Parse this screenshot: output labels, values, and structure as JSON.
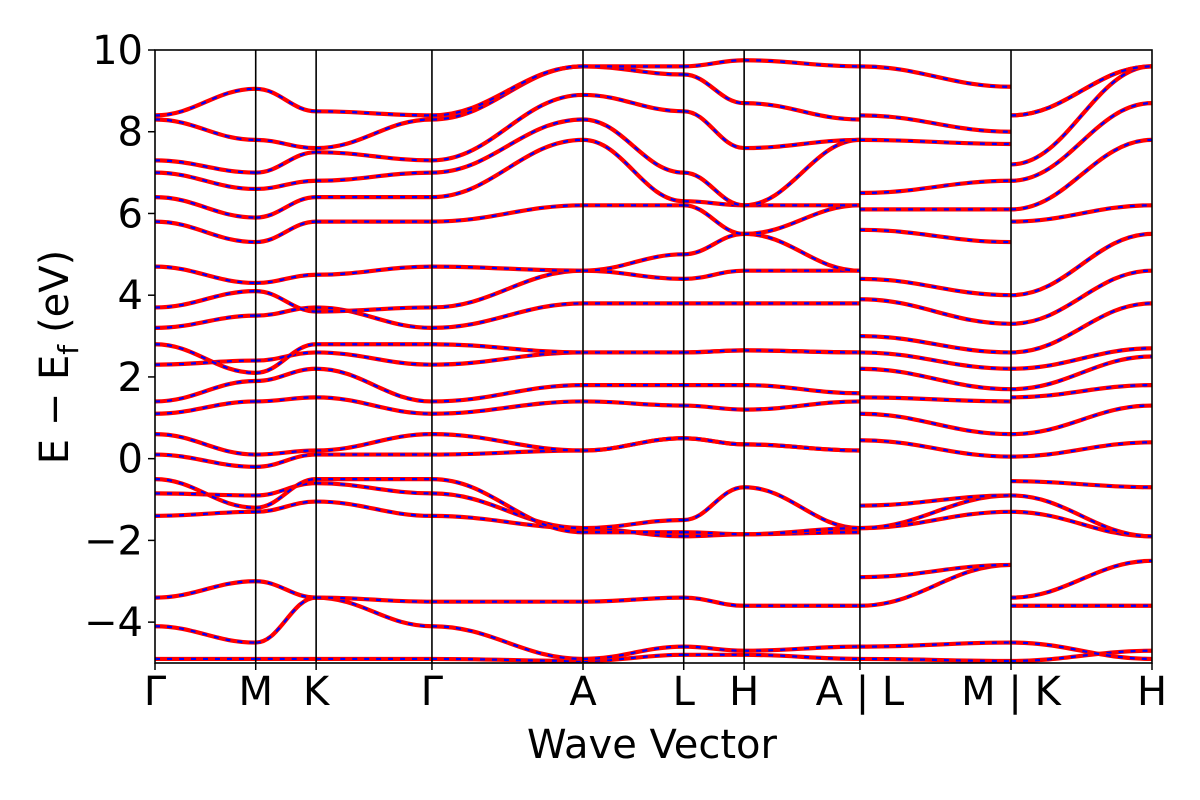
{
  "chart_data": {
    "type": "line",
    "title": "",
    "xlabel": "Wave Vector",
    "ylabel": "E − E_f (eV)",
    "ylabel_main": "E − E",
    "ylabel_sub": "f",
    "ylabel_unit": "(eV)",
    "ylim": [
      -5,
      10
    ],
    "yticks": [
      -4,
      -2,
      0,
      2,
      4,
      6,
      8,
      10
    ],
    "ytick_labels": [
      "−4",
      "−2",
      "0",
      "2",
      "4",
      "6",
      "8",
      "10"
    ],
    "xlim": [
      0,
      9.9
    ],
    "grid": false,
    "legend": "none",
    "series_colors": {
      "primary": "#ff0000",
      "overlay": "#0000ff"
    },
    "kpoint_lines": [
      1.0,
      1.6,
      2.75,
      4.25,
      5.25,
      5.85,
      7.0,
      8.5
    ],
    "kpoints": [
      {
        "label": "Γ",
        "x": 0.0
      },
      {
        "label": "M",
        "x": 1.0
      },
      {
        "label": "K",
        "x": 1.6
      },
      {
        "label": "Γ",
        "x": 2.75
      },
      {
        "label": "A",
        "x": 4.25
      },
      {
        "label": "L",
        "x": 5.25
      },
      {
        "label": "H",
        "x": 5.85
      },
      {
        "label": "A | L",
        "x": 7.0
      },
      {
        "label": "M | K",
        "x": 8.5
      },
      {
        "label": "H",
        "x": 9.9
      }
    ],
    "segments": [
      {
        "x": [
          0,
          1.0
        ],
        "bands": [
          [
            -4.9,
            -4.9
          ],
          [
            -4.1,
            -4.5
          ],
          [
            -3.4,
            -3.0
          ],
          [
            -1.4,
            -1.3
          ],
          [
            -0.85,
            -0.9
          ],
          [
            -0.5,
            -1.2
          ],
          [
            0.1,
            -0.2
          ],
          [
            0.6,
            0.1
          ],
          [
            1.1,
            1.4
          ],
          [
            1.4,
            1.9
          ],
          [
            2.3,
            2.4
          ],
          [
            2.8,
            2.1
          ],
          [
            3.2,
            3.5
          ],
          [
            3.7,
            4.1
          ],
          [
            4.7,
            4.3
          ],
          [
            5.8,
            5.3
          ],
          [
            6.4,
            5.9
          ],
          [
            7.0,
            6.6
          ],
          [
            7.3,
            7.0
          ],
          [
            8.3,
            7.8
          ],
          [
            8.4,
            9.05
          ]
        ]
      },
      {
        "x": [
          1.0,
          1.6
        ],
        "bands": [
          [
            -4.9,
            -4.9
          ],
          [
            -4.5,
            -3.4
          ],
          [
            -3.0,
            -3.4
          ],
          [
            -1.3,
            -1.05
          ],
          [
            -0.9,
            -0.6
          ],
          [
            -1.2,
            -0.5
          ],
          [
            -0.2,
            0.1
          ],
          [
            0.1,
            0.2
          ],
          [
            1.4,
            1.5
          ],
          [
            1.9,
            2.2
          ],
          [
            2.4,
            2.6
          ],
          [
            2.1,
            2.8
          ],
          [
            3.5,
            3.7
          ],
          [
            4.1,
            3.6
          ],
          [
            4.3,
            4.5
          ],
          [
            5.3,
            5.8
          ],
          [
            5.9,
            6.4
          ],
          [
            6.6,
            6.8
          ],
          [
            7.0,
            7.5
          ],
          [
            7.8,
            7.6
          ],
          [
            9.05,
            8.5
          ]
        ]
      },
      {
        "x": [
          1.6,
          2.75
        ],
        "bands": [
          [
            -4.9,
            -4.9
          ],
          [
            -3.4,
            -4.1
          ],
          [
            -3.4,
            -3.5
          ],
          [
            -1.05,
            -1.4
          ],
          [
            -0.6,
            -0.85
          ],
          [
            -0.5,
            -0.5
          ],
          [
            0.1,
            0.1
          ],
          [
            0.2,
            0.6
          ],
          [
            1.5,
            1.1
          ],
          [
            2.2,
            1.4
          ],
          [
            2.6,
            2.3
          ],
          [
            2.8,
            2.8
          ],
          [
            3.7,
            3.2
          ],
          [
            3.6,
            3.7
          ],
          [
            4.5,
            4.7
          ],
          [
            5.8,
            5.8
          ],
          [
            6.4,
            6.4
          ],
          [
            6.8,
            7.0
          ],
          [
            7.5,
            7.3
          ],
          [
            7.6,
            8.3
          ],
          [
            8.5,
            8.4
          ]
        ]
      },
      {
        "x": [
          2.75,
          4.25
        ],
        "bands": [
          [
            -4.9,
            -4.95
          ],
          [
            -4.1,
            -4.9
          ],
          [
            -3.5,
            -3.5
          ],
          [
            -1.4,
            -1.7
          ],
          [
            -0.85,
            -1.7
          ],
          [
            -0.5,
            -1.8
          ],
          [
            0.1,
            0.2
          ],
          [
            0.6,
            0.2
          ],
          [
            1.1,
            1.4
          ],
          [
            1.4,
            1.8
          ],
          [
            2.3,
            2.6
          ],
          [
            2.8,
            2.6
          ],
          [
            3.2,
            3.8
          ],
          [
            3.7,
            4.6
          ],
          [
            4.7,
            4.6
          ],
          [
            5.8,
            6.2
          ],
          [
            6.4,
            7.8
          ],
          [
            7.0,
            8.3
          ],
          [
            7.3,
            8.9
          ],
          [
            8.3,
            9.6
          ],
          [
            8.4,
            9.6
          ]
        ]
      },
      {
        "x": [
          4.25,
          5.25
        ],
        "bands": [
          [
            -4.95,
            -4.8
          ],
          [
            -4.9,
            -4.6
          ],
          [
            -3.5,
            -3.4
          ],
          [
            -1.7,
            -1.9
          ],
          [
            -1.7,
            -1.5
          ],
          [
            -1.8,
            -1.8
          ],
          [
            0.2,
            0.5
          ],
          [
            0.2,
            0.5
          ],
          [
            1.4,
            1.3
          ],
          [
            1.8,
            1.8
          ],
          [
            2.6,
            2.6
          ],
          [
            2.6,
            2.6
          ],
          [
            3.8,
            3.8
          ],
          [
            4.6,
            4.4
          ],
          [
            4.6,
            5.0
          ],
          [
            6.2,
            6.2
          ],
          [
            7.8,
            6.3
          ],
          [
            8.3,
            7.0
          ],
          [
            8.9,
            8.5
          ],
          [
            9.6,
            9.4
          ],
          [
            9.6,
            9.6
          ]
        ]
      },
      {
        "x": [
          5.25,
          5.85
        ],
        "bands": [
          [
            -4.8,
            -4.8
          ],
          [
            -4.6,
            -4.7
          ],
          [
            -3.4,
            -3.6
          ],
          [
            -1.9,
            -1.85
          ],
          [
            -1.5,
            -0.7
          ],
          [
            -1.8,
            -1.85
          ],
          [
            0.5,
            0.35
          ],
          [
            0.5,
            0.35
          ],
          [
            1.3,
            1.2
          ],
          [
            1.8,
            1.8
          ],
          [
            2.6,
            2.65
          ],
          [
            2.6,
            2.65
          ],
          [
            3.8,
            3.8
          ],
          [
            4.4,
            4.6
          ],
          [
            5.0,
            5.5
          ],
          [
            6.2,
            5.5
          ],
          [
            6.3,
            6.2
          ],
          [
            7.0,
            6.2
          ],
          [
            8.5,
            7.6
          ],
          [
            9.4,
            8.7
          ],
          [
            9.6,
            9.75
          ]
        ]
      },
      {
        "x": [
          5.85,
          7.0
        ],
        "bands": [
          [
            -4.8,
            -4.9
          ],
          [
            -4.7,
            -4.6
          ],
          [
            -3.6,
            -3.6
          ],
          [
            -1.85,
            -1.8
          ],
          [
            -0.7,
            -1.7
          ],
          [
            -1.85,
            -1.7
          ],
          [
            0.35,
            0.2
          ],
          [
            0.35,
            0.2
          ],
          [
            1.2,
            1.4
          ],
          [
            1.8,
            1.6
          ],
          [
            2.65,
            2.6
          ],
          [
            2.65,
            2.6
          ],
          [
            3.8,
            3.8
          ],
          [
            4.6,
            4.6
          ],
          [
            5.5,
            4.6
          ],
          [
            5.5,
            6.2
          ],
          [
            6.2,
            6.2
          ],
          [
            6.2,
            7.8
          ],
          [
            7.6,
            7.8
          ],
          [
            8.7,
            8.3
          ],
          [
            9.75,
            9.6
          ]
        ]
      },
      {
        "x": [
          7.0,
          8.5
        ],
        "bands": [
          [
            -4.9,
            -4.95
          ],
          [
            -4.6,
            -4.5
          ],
          [
            -3.6,
            -2.6
          ],
          [
            -2.9,
            -2.6
          ],
          [
            -1.7,
            -1.3
          ],
          [
            -1.7,
            -0.9
          ],
          [
            -1.15,
            -0.9
          ],
          [
            0.45,
            0.05
          ],
          [
            1.1,
            0.6
          ],
          [
            1.5,
            1.4
          ],
          [
            2.2,
            1.7
          ],
          [
            2.6,
            2.2
          ],
          [
            3.0,
            2.6
          ],
          [
            3.9,
            3.3
          ],
          [
            4.4,
            4.0
          ],
          [
            5.6,
            5.3
          ],
          [
            6.1,
            6.1
          ],
          [
            6.5,
            6.8
          ],
          [
            7.8,
            7.7
          ],
          [
            8.4,
            8.0
          ],
          [
            9.6,
            9.1
          ]
        ]
      },
      {
        "x": [
          8.5,
          9.9
        ],
        "bands": [
          [
            -4.95,
            -4.7
          ],
          [
            -4.5,
            -4.9
          ],
          [
            -3.6,
            -3.6
          ],
          [
            -3.4,
            -2.5
          ],
          [
            -1.3,
            -1.9
          ],
          [
            -0.9,
            -1.9
          ],
          [
            -0.55,
            -0.7
          ],
          [
            0.05,
            0.4
          ],
          [
            0.6,
            1.3
          ],
          [
            1.5,
            1.8
          ],
          [
            1.7,
            2.5
          ],
          [
            2.2,
            2.7
          ],
          [
            2.6,
            3.8
          ],
          [
            3.3,
            4.6
          ],
          [
            4.0,
            5.5
          ],
          [
            5.8,
            6.2
          ],
          [
            6.1,
            7.8
          ],
          [
            6.8,
            8.7
          ],
          [
            7.2,
            9.6
          ],
          [
            8.4,
            9.6
          ],
          [
            8.4,
            9.6
          ]
        ]
      }
    ]
  }
}
